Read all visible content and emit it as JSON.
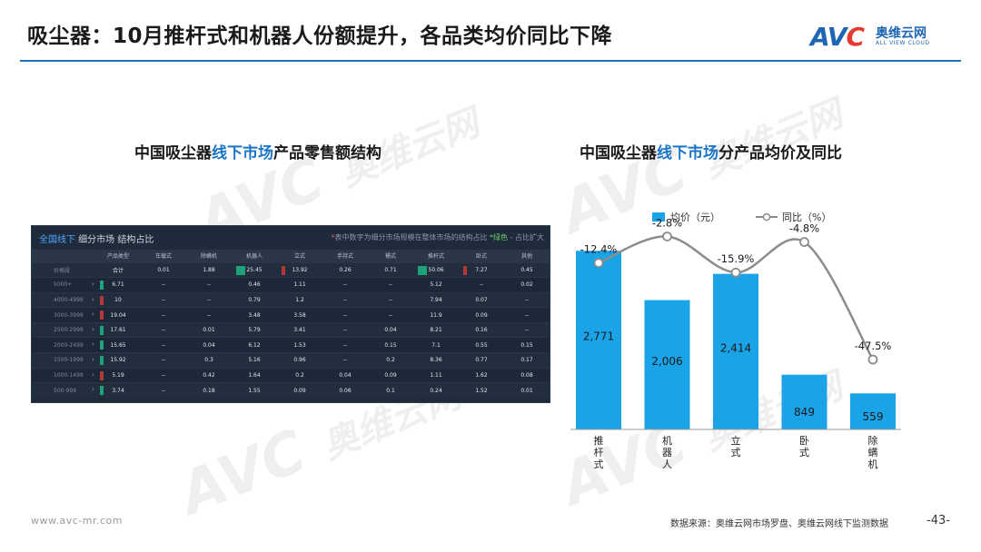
{
  "header": {
    "title": "吸尘器：10月推杆式和机器人份额提升，各品类均价同比下降",
    "logo_mark_a": "AV",
    "logo_mark_o": "C",
    "logo_cn": "奥维云网",
    "logo_en": "ALL VIEW CLOUD"
  },
  "watermarks": {
    "mark": "AVC",
    "text": "奥维云网",
    "sub": "ALL VIEW CLOUD"
  },
  "left": {
    "title_pre": "中国吸尘器",
    "title_hl": "线下市场",
    "title_post": "产品零售额结构",
    "panel": {
      "title_blue": "全国线下",
      "title_rest": " 细分市场 结构占比",
      "note_red": "*",
      "note_text": "表中数字为细分市场规模在整体市场的结构占比",
      "note_green": "*绿色",
      "note_tail": " - 占比扩大"
    },
    "columns": [
      "产品类型",
      "车载式",
      "除螨机",
      "机器人",
      "立式",
      "手持式",
      "桶式",
      "推杆式",
      "卧式",
      "其他"
    ],
    "rows": [
      {
        "label": "价格段",
        "cells": [
          "合计",
          "0.01",
          "1.88",
          "25.45",
          "13.92",
          "0.26",
          "0.71",
          "50.06",
          "7.27",
          "0.45"
        ]
      },
      {
        "label": "5000+",
        "cells": [
          "6.71",
          "--",
          "--",
          "0.46",
          "1.11",
          "--",
          "--",
          "5.12",
          "--",
          "0.02"
        ]
      },
      {
        "label": "4000-4999",
        "cells": [
          "10",
          "--",
          "--",
          "0.79",
          "1.2",
          "--",
          "--",
          "7.94",
          "0.07",
          "--"
        ]
      },
      {
        "label": "3000-3999",
        "cells": [
          "19.04",
          "--",
          "--",
          "3.48",
          "3.58",
          "--",
          "--",
          "11.9",
          "0.09",
          "--"
        ]
      },
      {
        "label": "2500-2999",
        "cells": [
          "17.61",
          "--",
          "0.01",
          "5.79",
          "3.41",
          "--",
          "0.04",
          "8.21",
          "0.16",
          "--"
        ]
      },
      {
        "label": "2000-2499",
        "cells": [
          "15.65",
          "--",
          "0.04",
          "6.12",
          "1.53",
          "--",
          "0.15",
          "7.1",
          "0.55",
          "0.15"
        ]
      },
      {
        "label": "1500-1999",
        "cells": [
          "15.92",
          "--",
          "0.3",
          "5.16",
          "0.96",
          "--",
          "0.2",
          "8.36",
          "0.77",
          "0.17"
        ]
      },
      {
        "label": "1000-1499",
        "cells": [
          "5.19",
          "--",
          "0.42",
          "1.64",
          "0.2",
          "0.04",
          "0.09",
          "1.11",
          "1.62",
          "0.08"
        ]
      },
      {
        "label": "500-999",
        "cells": [
          "3.74",
          "--",
          "0.18",
          "1.55",
          "0.09",
          "0.06",
          "0.1",
          "0.24",
          "1.52",
          "0.01"
        ]
      }
    ]
  },
  "right": {
    "title_pre": "中国吸尘器",
    "title_hl": "线下市场",
    "title_post": "分产品均价及同比"
  },
  "chart_data": {
    "type": "bar",
    "categories": [
      "推杆式",
      "机器人",
      "立式",
      "卧式",
      "除螨机"
    ],
    "series": [
      {
        "name": "均价（元）",
        "type": "bar",
        "values": [
          2771,
          2006,
          2414,
          849,
          559
        ],
        "labels": [
          "2,771",
          "2,006",
          "2,414",
          "849",
          "559"
        ],
        "color": "#1aa3e6"
      },
      {
        "name": "同比（%）",
        "type": "line",
        "values": [
          -12.4,
          -2.8,
          -15.9,
          -4.8,
          -47.5
        ],
        "labels": [
          "-12.4%",
          "-2.8%",
          "-15.9%",
          "-4.8%",
          "-47.5%"
        ],
        "color": "#8c8c8c"
      }
    ],
    "ylim": [
      0,
      3000
    ],
    "y2lim": [
      -60,
      0
    ],
    "legend": "top"
  },
  "footer": {
    "url": "www.avc-mr.com",
    "source": "数据来源：奥维云网市场罗盘、奥维云网线下监测数据",
    "page": "-43-"
  },
  "colors": {
    "accent": "#1f6fb5",
    "highlight": "#1a75c7",
    "bar": "#1aa3e6",
    "line": "#8c8c8c",
    "panel_bg": "#1f2a3a",
    "marker_red": "#b43a3a",
    "marker_green": "#1fa27a"
  }
}
